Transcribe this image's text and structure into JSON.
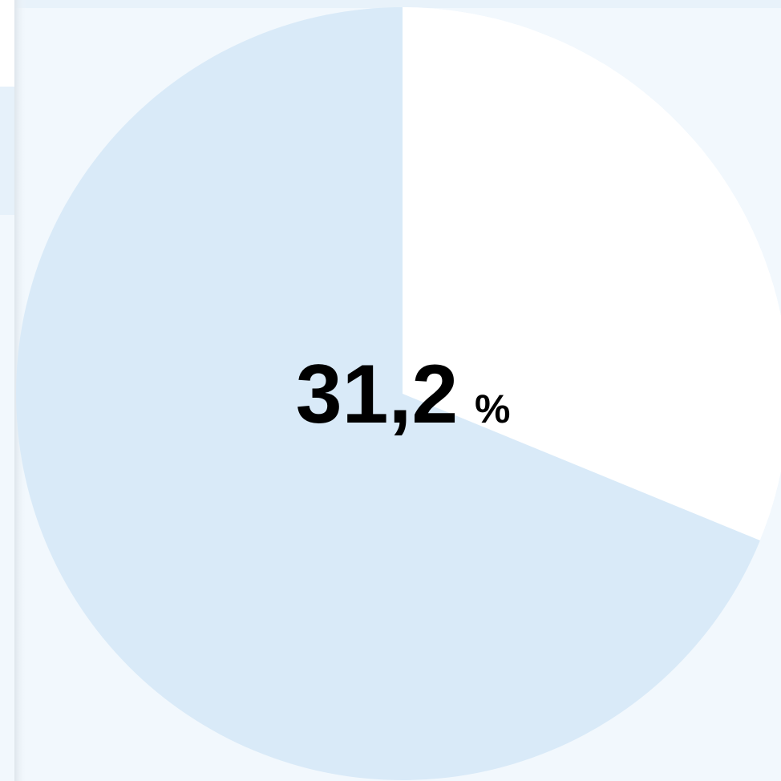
{
  "chart_data": {
    "type": "pie",
    "values": [
      31.2
    ],
    "value_labels": [
      "31,2"
    ],
    "unit": "%",
    "color": "#ffffff",
    "track_color": "#d9eaf8"
  }
}
